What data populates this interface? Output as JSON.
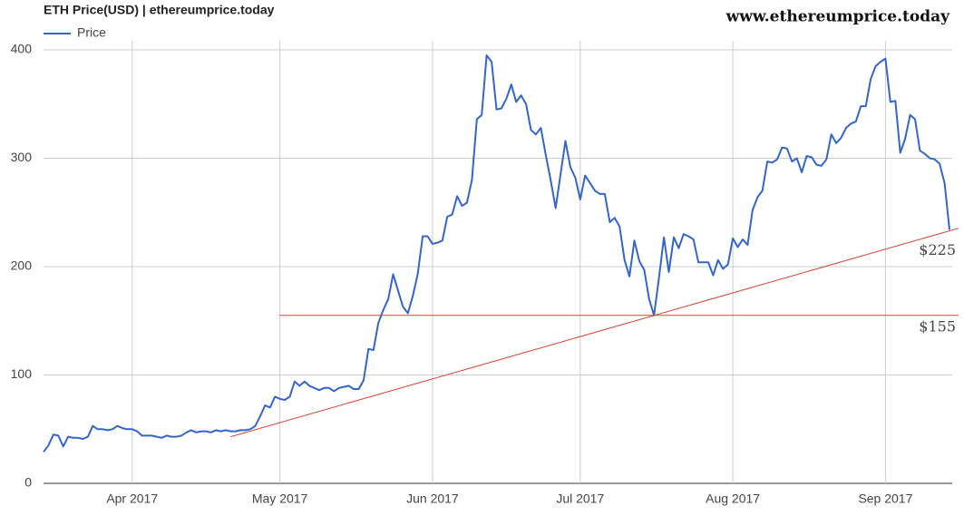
{
  "chart_data": {
    "type": "line",
    "title": "ETH Price(USD) | ethereumprice.today",
    "watermark": "www.ethereumprice.today",
    "categories": [
      null,
      null,
      null,
      null,
      null,
      null,
      null,
      null,
      null,
      null,
      null,
      null,
      null,
      null,
      null,
      null,
      null,
      null,
      "Apr 2017",
      null,
      null,
      null,
      null,
      null,
      null,
      null,
      null,
      null,
      null,
      null,
      null,
      null,
      null,
      null,
      null,
      null,
      null,
      null,
      null,
      null,
      null,
      null,
      null,
      null,
      null,
      null,
      null,
      null,
      "May 2017",
      null,
      null,
      null,
      null,
      null,
      null,
      null,
      null,
      null,
      null,
      null,
      null,
      null,
      null,
      null,
      null,
      null,
      null,
      null,
      null,
      null,
      null,
      null,
      null,
      null,
      null,
      null,
      null,
      null,
      null,
      "Jun 2017",
      null,
      null,
      null,
      null,
      null,
      null,
      null,
      null,
      null,
      null,
      null,
      null,
      null,
      null,
      null,
      null,
      null,
      null,
      null,
      null,
      null,
      null,
      null,
      null,
      null,
      null,
      null,
      null,
      null,
      "Jul 2017",
      null,
      null,
      null,
      null,
      null,
      null,
      null,
      null,
      null,
      null,
      null,
      null,
      null,
      null,
      null,
      null,
      null,
      null,
      null,
      null,
      null,
      null,
      null,
      null,
      null,
      null,
      null,
      null,
      null,
      null,
      "Aug 2017",
      null,
      null,
      null,
      null,
      null,
      null,
      null,
      null,
      null,
      null,
      null,
      null,
      null,
      null,
      null,
      null,
      null,
      null,
      null,
      null,
      null,
      null,
      null,
      null,
      null,
      null,
      null,
      null,
      null,
      null,
      "Sep 2017",
      null,
      null,
      null,
      null,
      null,
      null,
      null,
      null,
      null,
      null,
      null,
      null,
      null
    ],
    "series": [
      {
        "name": "Price",
        "color": "#3366cc",
        "values": [
          29,
          35,
          45,
          44,
          34,
          43,
          42,
          42,
          41,
          43,
          53,
          50,
          50,
          49,
          50,
          53,
          51,
          50,
          50,
          48,
          44,
          44,
          44,
          43,
          42,
          44,
          43,
          43,
          44,
          47,
          49,
          47,
          48,
          48,
          47,
          49,
          48,
          49,
          48,
          48,
          49,
          49,
          50,
          53,
          62,
          72,
          70,
          80,
          78,
          77,
          80,
          94,
          90,
          94,
          90,
          88,
          86,
          88,
          88,
          85,
          88,
          89,
          90,
          87,
          87,
          95,
          124,
          123,
          148,
          160,
          170,
          193,
          178,
          163,
          157,
          173,
          193,
          228,
          228,
          221,
          222,
          224,
          246,
          248,
          265,
          256,
          259,
          280,
          336,
          340,
          395,
          389,
          345,
          346,
          355,
          368,
          352,
          358,
          350,
          326,
          322,
          328,
          303,
          280,
          254,
          285,
          316,
          292,
          282,
          262,
          284,
          277,
          270,
          267,
          267,
          241,
          245,
          237,
          206,
          191,
          224,
          205,
          197,
          170,
          155,
          190,
          227,
          195,
          227,
          217,
          230,
          228,
          225,
          204,
          204,
          204,
          192,
          206,
          198,
          202,
          226,
          218,
          225,
          220,
          252,
          264,
          270,
          297,
          296,
          299,
          310,
          309,
          297,
          300,
          287,
          302,
          301,
          294,
          293,
          299,
          322,
          314,
          319,
          328,
          332,
          334,
          348,
          348,
          373,
          385,
          389,
          392,
          352,
          353,
          305,
          318,
          340,
          336,
          307,
          304,
          300,
          299,
          295,
          277,
          234
        ]
      }
    ],
    "ylim": [
      0,
      400
    ],
    "yticks": [
      0,
      100,
      200,
      300,
      400
    ],
    "grid": true,
    "legend": "top-left",
    "annotations": [
      {
        "label": "$155",
        "color": "#dd4433",
        "from": [
          48,
          155
        ],
        "to": [
          184,
          155
        ]
      },
      {
        "label": "$225",
        "color": "#dd4433",
        "from": [
          38,
          43
        ],
        "to": [
          184,
          233
        ]
      }
    ]
  }
}
